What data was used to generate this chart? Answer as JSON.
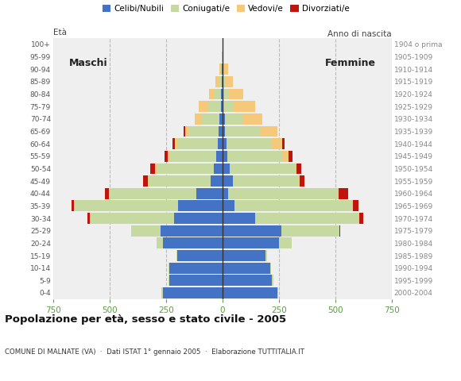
{
  "age_groups": [
    "100+",
    "95-99",
    "90-94",
    "85-89",
    "80-84",
    "75-79",
    "70-74",
    "65-69",
    "60-64",
    "55-59",
    "50-54",
    "45-49",
    "40-44",
    "35-39",
    "30-34",
    "25-29",
    "20-24",
    "15-19",
    "10-14",
    "5-9",
    "0-4"
  ],
  "birth_years": [
    "1904 o prima",
    "1905-1909",
    "1910-1914",
    "1915-1919",
    "1920-1924",
    "1925-1929",
    "1930-1934",
    "1935-1939",
    "1940-1944",
    "1945-1949",
    "1950-1954",
    "1955-1959",
    "1960-1964",
    "1965-1969",
    "1970-1974",
    "1975-1979",
    "1980-1984",
    "1985-1989",
    "1990-1994",
    "1995-1999",
    "2000-2004"
  ],
  "colors": {
    "celibe": "#4472C4",
    "coniugato": "#C5D9A0",
    "vedovo": "#F5C87A",
    "divorziato": "#C0140C"
  },
  "males": {
    "celibe": [
      0,
      0,
      2,
      4,
      5,
      8,
      14,
      18,
      22,
      28,
      38,
      52,
      115,
      195,
      215,
      275,
      265,
      200,
      235,
      235,
      265
    ],
    "coniugato": [
      0,
      0,
      5,
      12,
      28,
      55,
      80,
      130,
      175,
      208,
      255,
      275,
      385,
      462,
      372,
      128,
      28,
      4,
      4,
      4,
      4
    ],
    "vedovo": [
      0,
      2,
      8,
      14,
      28,
      42,
      28,
      18,
      12,
      8,
      4,
      4,
      4,
      0,
      0,
      0,
      0,
      0,
      0,
      0,
      0
    ],
    "divorziato": [
      0,
      0,
      0,
      0,
      0,
      0,
      0,
      5,
      12,
      12,
      22,
      22,
      15,
      10,
      10,
      0,
      0,
      0,
      0,
      0,
      0
    ]
  },
  "females": {
    "celibe": [
      0,
      0,
      2,
      3,
      4,
      5,
      10,
      12,
      18,
      22,
      32,
      46,
      26,
      55,
      145,
      262,
      252,
      192,
      212,
      220,
      242
    ],
    "coniugato": [
      0,
      0,
      3,
      8,
      22,
      45,
      80,
      155,
      198,
      245,
      288,
      288,
      485,
      522,
      462,
      255,
      55,
      4,
      4,
      4,
      4
    ],
    "vedovo": [
      0,
      5,
      20,
      36,
      65,
      95,
      85,
      75,
      50,
      26,
      8,
      8,
      4,
      0,
      0,
      0,
      0,
      0,
      0,
      0,
      0
    ],
    "divorziato": [
      0,
      0,
      0,
      0,
      0,
      0,
      0,
      0,
      10,
      18,
      22,
      22,
      40,
      26,
      18,
      4,
      0,
      0,
      0,
      0,
      0
    ]
  },
  "title": "Popolazione per età, sesso e stato civile - 2005",
  "subtitle": "COMUNE DI MALNATE (VA)  ·  Dati ISTAT 1° gennaio 2005  ·  Elaborazione TUTTITALIA.IT",
  "legend_labels": [
    "Celibi/Nubili",
    "Coniugati/e",
    "Vedovi/e",
    "Divorziati/e"
  ],
  "bg_color": "#FFFFFF",
  "plot_bg": "#EFEFEF",
  "grid_color": "#BBBBBB",
  "axis_tick_color": "#5B9D3E",
  "bar_height": 0.88,
  "xlim": 750
}
